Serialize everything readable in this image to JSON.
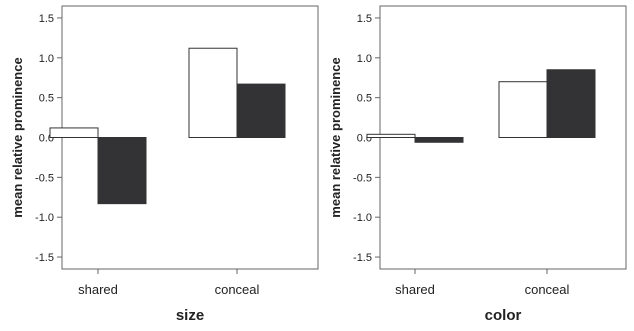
{
  "chart_data": [
    {
      "type": "bar",
      "title": "",
      "xlabel": "size",
      "ylabel": "mean relative prominence",
      "categories": [
        "shared",
        "conceal"
      ],
      "series": [
        {
          "values": [
            0.12,
            1.12
          ],
          "color": "#ffffff"
        },
        {
          "values": [
            -0.83,
            0.67
          ],
          "color": "#333336"
        }
      ],
      "ylim": [
        -1.65,
        1.65
      ],
      "yticks": [
        1.5,
        1.0,
        0.5,
        0.0,
        -0.5,
        -1.0,
        -1.5
      ],
      "ytick_labels": [
        "1.5",
        "1.0",
        "0.5",
        "0.0",
        "-0.5",
        "-1.0",
        "-1.5"
      ],
      "grid": false,
      "legend": "none"
    },
    {
      "type": "bar",
      "title": "",
      "xlabel": "color",
      "ylabel": "mean relative prominence",
      "categories": [
        "shared",
        "conceal"
      ],
      "series": [
        {
          "values": [
            0.04,
            0.7
          ],
          "color": "#ffffff"
        },
        {
          "values": [
            -0.06,
            0.85
          ],
          "color": "#333336"
        }
      ],
      "ylim": [
        -1.65,
        1.65
      ],
      "yticks": [
        1.5,
        1.0,
        0.5,
        0.0,
        -0.5,
        -1.0,
        -1.5
      ],
      "ytick_labels": [
        "1.5",
        "1.0",
        "0.5",
        "0.0",
        "-0.5",
        "-1.0",
        "-1.5"
      ],
      "grid": false,
      "legend": "none"
    }
  ]
}
